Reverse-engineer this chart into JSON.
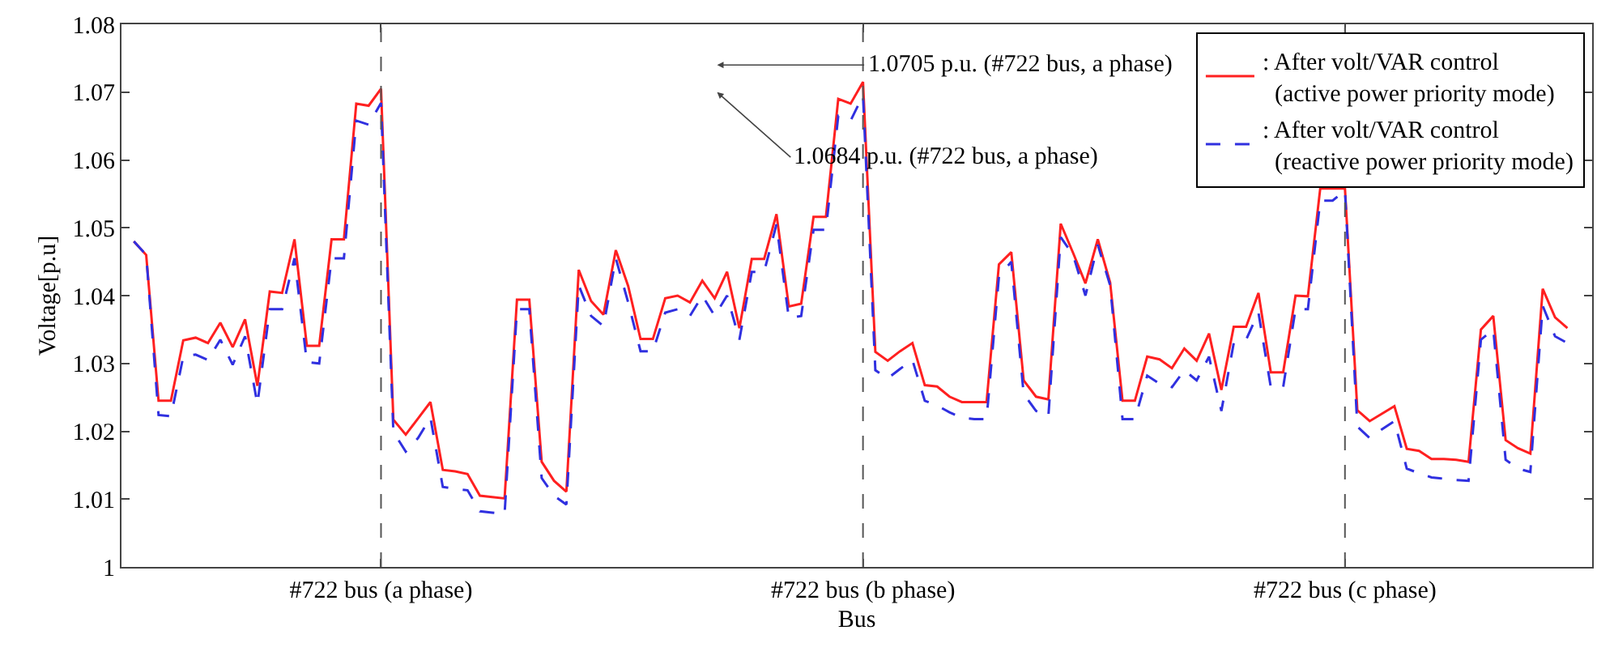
{
  "chart_data": {
    "type": "line",
    "xlabel": "Bus",
    "ylabel": "Voltage[p.u]",
    "categories": [
      null,
      null,
      null,
      null,
      null,
      null,
      null,
      null,
      null,
      null,
      null,
      null,
      null,
      null,
      null,
      null,
      null,
      null,
      null,
      null,
      "#722 bus (a phase)",
      null,
      null,
      null,
      null,
      null,
      null,
      null,
      null,
      null,
      null,
      null,
      null,
      null,
      null,
      null,
      null,
      null,
      null,
      null,
      null,
      null,
      null,
      null,
      null,
      null,
      null,
      null,
      null,
      null,
      null,
      null,
      null,
      null,
      null,
      null,
      null,
      null,
      null,
      "#722 bus (b phase)",
      null,
      null,
      null,
      null,
      null,
      null,
      null,
      null,
      null,
      null,
      null,
      null,
      null,
      null,
      null,
      null,
      null,
      null,
      null,
      null,
      null,
      null,
      null,
      null,
      null,
      null,
      null,
      null,
      null,
      null,
      null,
      null,
      null,
      null,
      null,
      null,
      null,
      null,
      "#722 bus (c phase)",
      null,
      null,
      null,
      null,
      null,
      null,
      null,
      null,
      null,
      null,
      null,
      null,
      null,
      null,
      null,
      null,
      null,
      null
    ],
    "series": [
      {
        "name": ": After volt/VAR control (active power priority mode)",
        "color": "#ff2020",
        "line_style": "solid",
        "values": [
          1.048,
          1.046,
          1.0245,
          1.0245,
          1.0334,
          1.0338,
          1.033,
          1.036,
          1.0324,
          1.0365,
          1.0267,
          1.0406,
          1.0404,
          1.0483,
          1.0326,
          1.0326,
          1.0483,
          1.0483,
          1.0683,
          1.068,
          1.0705,
          1.0217,
          1.0195,
          1.0219,
          1.0243,
          1.0143,
          1.0141,
          1.0137,
          1.0105,
          1.0103,
          1.0101,
          1.0394,
          1.0394,
          1.0155,
          1.0127,
          1.0111,
          1.0438,
          1.0392,
          1.0372,
          1.0467,
          1.0414,
          1.0336,
          1.0336,
          1.0396,
          1.04,
          1.039,
          1.0422,
          1.0396,
          1.0435,
          1.0352,
          1.0454,
          1.0454,
          1.052,
          1.0384,
          1.0388,
          1.0516,
          1.0516,
          1.069,
          1.0683,
          1.0715,
          1.0317,
          1.0304,
          1.0318,
          1.033,
          1.0268,
          1.0266,
          1.0251,
          1.0243,
          1.0243,
          1.0243,
          1.0446,
          1.0464,
          1.0275,
          1.0251,
          1.0247,
          1.0506,
          1.0463,
          1.0418,
          1.0483,
          1.0419,
          1.0245,
          1.0245,
          1.031,
          1.0306,
          1.0293,
          1.0322,
          1.0304,
          1.0344,
          1.0261,
          1.0354,
          1.0354,
          1.0404,
          1.0287,
          1.0287,
          1.04,
          1.0399,
          1.0558,
          1.0558,
          1.0558,
          1.0231,
          1.0215,
          1.0226,
          1.0237,
          1.0174,
          1.0171,
          1.0159,
          1.0159,
          1.0158,
          1.0155,
          1.035,
          1.037,
          1.0187,
          1.0175,
          1.0167,
          1.041,
          1.0368,
          1.0352
        ]
      },
      {
        "name": ": After volt/VAR control (reactive power priority mode)",
        "color": "#3030e0",
        "line_style": "dashed",
        "values": [
          1.048,
          1.046,
          1.0224,
          1.0222,
          1.031,
          1.0313,
          1.0305,
          1.0335,
          1.0298,
          1.034,
          1.024,
          1.038,
          1.038,
          1.0455,
          1.0302,
          1.03,
          1.0455,
          1.0455,
          1.0658,
          1.0652,
          1.0684,
          1.0199,
          1.017,
          1.019,
          1.022,
          1.0118,
          1.0115,
          1.0113,
          1.0082,
          1.008,
          1.0078,
          1.038,
          1.038,
          1.0131,
          1.0105,
          1.0092,
          1.0415,
          1.037,
          1.0355,
          1.0455,
          1.039,
          1.0318,
          1.0318,
          1.0375,
          1.038,
          1.037,
          1.04,
          1.037,
          1.04,
          1.0335,
          1.0435,
          1.0435,
          1.0505,
          1.0367,
          1.037,
          1.0497,
          1.0497,
          1.0665,
          1.0658,
          1.0695,
          1.029,
          1.0278,
          1.0292,
          1.0305,
          1.0245,
          1.0238,
          1.0228,
          1.022,
          1.0218,
          1.0218,
          1.0428,
          1.045,
          1.0255,
          1.023,
          1.0222,
          1.0486,
          1.046,
          1.04,
          1.0475,
          1.0415,
          1.0218,
          1.0218,
          1.0282,
          1.027,
          1.0265,
          1.029,
          1.0275,
          1.031,
          1.023,
          1.033,
          1.0335,
          1.0375,
          1.0265,
          1.0265,
          1.038,
          1.038,
          1.054,
          1.054,
          1.0555,
          1.0207,
          1.019,
          1.0203,
          1.0215,
          1.0145,
          1.0138,
          1.0132,
          1.013,
          1.0128,
          1.0127,
          1.0335,
          1.035,
          1.0158,
          1.0145,
          1.014,
          1.0385,
          1.034,
          1.033
        ]
      }
    ],
    "ylim": [
      1,
      1.08
    ],
    "yticks": [
      1,
      1.01,
      1.02,
      1.03,
      1.04,
      1.05,
      1.06,
      1.07,
      1.08
    ],
    "ref_lines": [
      {
        "axis": "x",
        "value": "#722 bus (a phase)",
        "color": "#555555",
        "line_style": "dashed"
      },
      {
        "axis": "x",
        "value": "#722 bus (b phase)",
        "color": "#555555",
        "line_style": "dashed"
      },
      {
        "axis": "x",
        "value": "#722 bus (c phase)",
        "color": "#555555",
        "line_style": "dashed"
      }
    ],
    "annotations": [
      "1.0705 p.u. (#722 bus, a phase)",
      "1.0684 p.u. (#722 bus, a phase)"
    ],
    "grid": false,
    "legend": "top right",
    "marker": "none"
  }
}
